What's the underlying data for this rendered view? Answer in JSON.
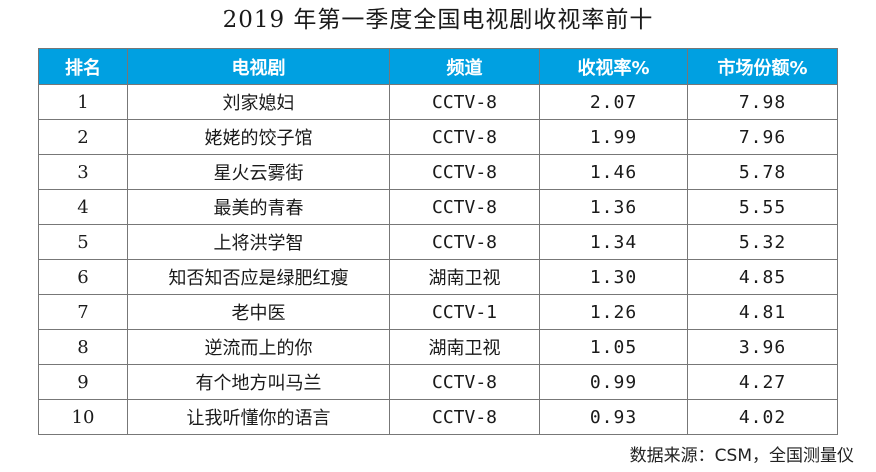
{
  "title": "2019 年第一季度全国电视剧收视率前十",
  "table": {
    "columns": [
      "排名",
      "电视剧",
      "频道",
      "收视率%",
      "市场份额%"
    ],
    "rows": [
      {
        "rank": "1",
        "drama": "刘家媳妇",
        "channel": "CCTV-8",
        "rating": "2.07",
        "share": "7.98"
      },
      {
        "rank": "2",
        "drama": "姥姥的饺子馆",
        "channel": "CCTV-8",
        "rating": "1.99",
        "share": "7.96"
      },
      {
        "rank": "3",
        "drama": "星火云雾街",
        "channel": "CCTV-8",
        "rating": "1.46",
        "share": "5.78"
      },
      {
        "rank": "4",
        "drama": "最美的青春",
        "channel": "CCTV-8",
        "rating": "1.36",
        "share": "5.55"
      },
      {
        "rank": "5",
        "drama": "上将洪学智",
        "channel": "CCTV-8",
        "rating": "1.34",
        "share": "5.32"
      },
      {
        "rank": "6",
        "drama": "知否知否应是绿肥红瘦",
        "channel": "湖南卫视",
        "rating": "1.30",
        "share": "4.85"
      },
      {
        "rank": "7",
        "drama": "老中医",
        "channel": "CCTV-1",
        "rating": "1.26",
        "share": "4.81"
      },
      {
        "rank": "8",
        "drama": "逆流而上的你",
        "channel": "湖南卫视",
        "rating": "1.05",
        "share": "3.96"
      },
      {
        "rank": "9",
        "drama": "有个地方叫马兰",
        "channel": "CCTV-8",
        "rating": "0.99",
        "share": "4.27"
      },
      {
        "rank": "10",
        "drama": "让我听懂你的语言",
        "channel": "CCTV-8",
        "rating": "0.93",
        "share": "4.02"
      }
    ]
  },
  "source": "数据来源：CSM，全国测量仪",
  "colors": {
    "header_bg": "#00a0e1",
    "header_text": "#ffffff",
    "border": "#777777"
  }
}
